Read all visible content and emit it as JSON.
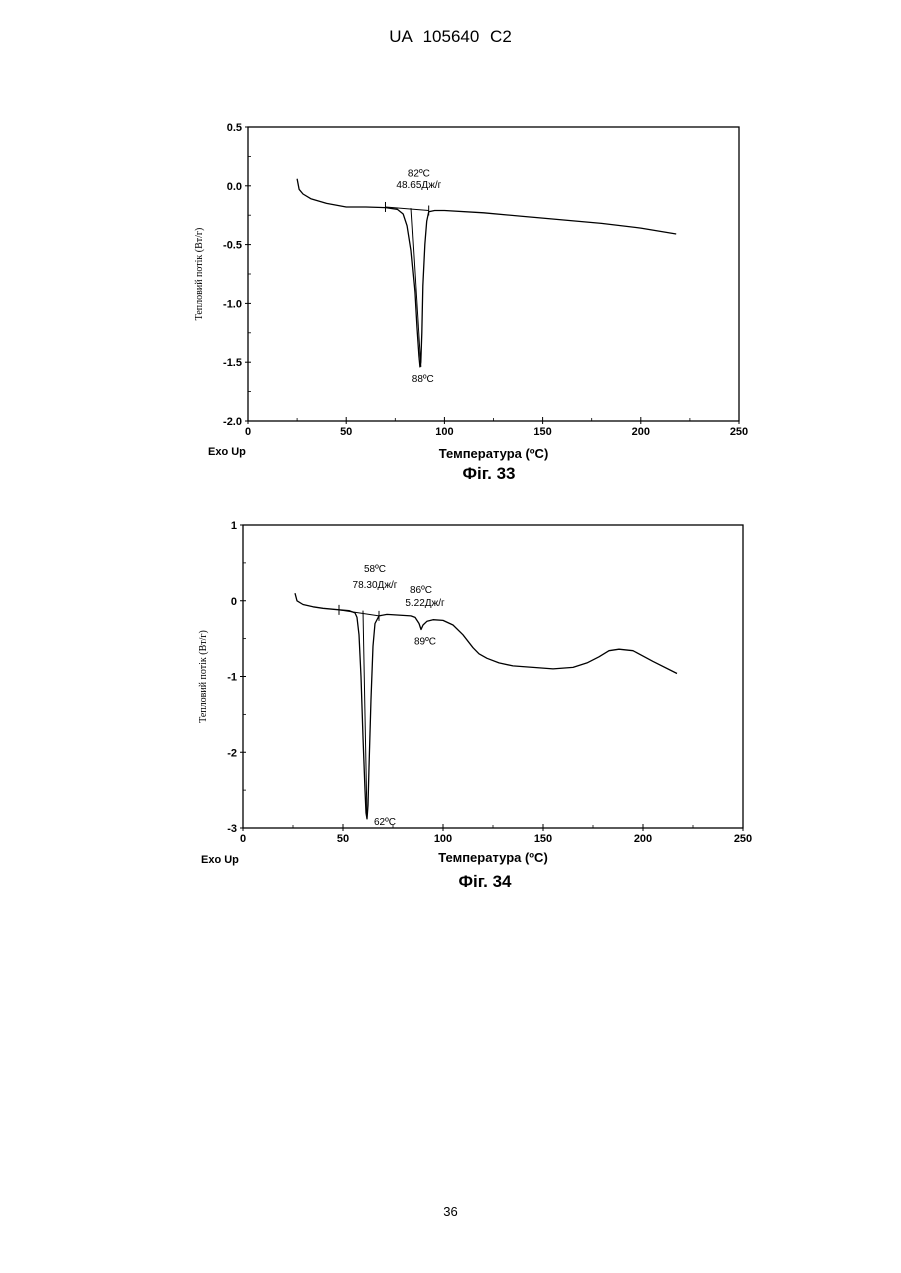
{
  "page": {
    "header": "UA 105640 C2",
    "page_number": "36"
  },
  "chart_data": [
    {
      "type": "line",
      "figure_label": "Фіг. 33",
      "title": "",
      "xlabel": "Температура (ºC)",
      "ylabel": "Тепловий потік (Вт/г)",
      "corner_label": "Exo Up",
      "xlim": [
        0,
        250
      ],
      "ylim": [
        -2.0,
        0.5
      ],
      "xticks": [
        0,
        50,
        100,
        150,
        200,
        250
      ],
      "yticks": [
        0.5,
        0.0,
        -0.5,
        -1.0,
        -1.5,
        -2.0
      ],
      "ytick_labels": [
        "0.5",
        "0.0",
        "-0.5",
        "-1.0",
        "-1.5",
        "-2.0"
      ],
      "grid": false,
      "series": [
        {
          "x": [
            25,
            26,
            28,
            32,
            40,
            50,
            60,
            70,
            76,
            79,
            81,
            83,
            85,
            86,
            87,
            87.5,
            88,
            88.5,
            89,
            90,
            91,
            92,
            95,
            100,
            120,
            140,
            160,
            180,
            200,
            218
          ],
          "y": [
            0.06,
            -0.03,
            -0.07,
            -0.11,
            -0.15,
            -0.18,
            -0.18,
            -0.185,
            -0.2,
            -0.24,
            -0.34,
            -0.55,
            -0.9,
            -1.2,
            -1.45,
            -1.54,
            -1.5,
            -1.25,
            -0.85,
            -0.5,
            -0.3,
            -0.22,
            -0.21,
            -0.21,
            -0.23,
            -0.26,
            -0.29,
            -0.32,
            -0.36,
            -0.41
          ]
        }
      ],
      "baseline": {
        "x": [
          70,
          92
        ],
        "y": [
          -0.18,
          -0.21
        ]
      },
      "onset_line": {
        "x": [
          83,
          88
        ],
        "y": [
          -0.19,
          -1.54
        ]
      },
      "annotations": [
        {
          "text": "82ºC",
          "x": 87,
          "y": 0.08
        },
        {
          "text": "48.65Дж/г",
          "x": 87,
          "y": -0.02
        },
        {
          "text": "88ºC",
          "x": 89,
          "y": -1.67
        }
      ]
    },
    {
      "type": "line",
      "figure_label": "Фіг. 34",
      "title": "",
      "xlabel": "Температура (ºC)",
      "ylabel": "Тепловий потік (Вт/г)",
      "corner_label": "Exo Up",
      "xlim": [
        0,
        250
      ],
      "ylim": [
        -3,
        1
      ],
      "xticks": [
        0,
        50,
        100,
        150,
        200,
        250
      ],
      "yticks": [
        1,
        0,
        -1,
        -2,
        -3
      ],
      "ytick_labels": [
        "1",
        "0",
        "-1",
        "-2",
        "-3"
      ],
      "grid": false,
      "series": [
        {
          "x": [
            26,
            27,
            30,
            35,
            40,
            48,
            53,
            56,
            57,
            58,
            59,
            60,
            61,
            61.5,
            62,
            62.5,
            63,
            64,
            65,
            66,
            68,
            72,
            78,
            84,
            86,
            88,
            89,
            90,
            92,
            95,
            100,
            105,
            110,
            115,
            118,
            122,
            128,
            135,
            145,
            155,
            165,
            172,
            178,
            183,
            188,
            195,
            205,
            217
          ],
          "y": [
            0.1,
            0.0,
            -0.05,
            -0.08,
            -0.1,
            -0.12,
            -0.13,
            -0.16,
            -0.22,
            -0.45,
            -1.0,
            -1.8,
            -2.5,
            -2.8,
            -2.88,
            -2.7,
            -2.2,
            -1.3,
            -0.6,
            -0.3,
            -0.2,
            -0.18,
            -0.19,
            -0.2,
            -0.22,
            -0.3,
            -0.38,
            -0.32,
            -0.27,
            -0.25,
            -0.26,
            -0.32,
            -0.45,
            -0.62,
            -0.7,
            -0.76,
            -0.82,
            -0.86,
            -0.88,
            -0.9,
            -0.88,
            -0.82,
            -0.74,
            -0.66,
            -0.64,
            -0.66,
            -0.8,
            -0.96
          ]
        }
      ],
      "baseline": {
        "x": [
          48,
          68
        ],
        "y": [
          -0.12,
          -0.2
        ]
      },
      "onset_line": {
        "x": [
          60,
          62
        ],
        "y": [
          -0.13,
          -2.88
        ]
      },
      "annotations": [
        {
          "text": "58ºC",
          "x": 66,
          "y": 0.38
        },
        {
          "text": "78.30Дж/г",
          "x": 66,
          "y": 0.17
        },
        {
          "text": "86ºC",
          "x": 89,
          "y": 0.1
        },
        {
          "text": "5.22Дж/г",
          "x": 91,
          "y": -0.07
        },
        {
          "text": "89ºC",
          "x": 91,
          "y": -0.58
        },
        {
          "text": "62ºC",
          "x": 71,
          "y": -2.96
        }
      ]
    }
  ]
}
